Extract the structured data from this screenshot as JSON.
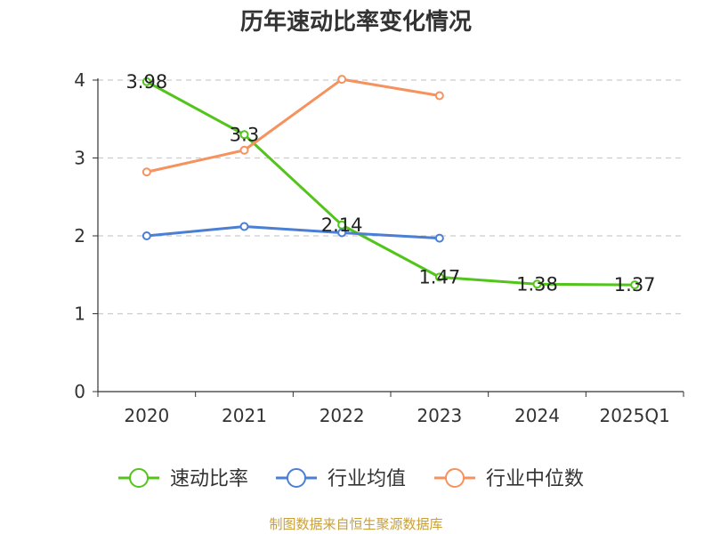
{
  "title": "历年速动比率变化情况",
  "source": "制图数据来自恒生聚源数据库",
  "chart_data": {
    "type": "line",
    "title": "历年速动比率变化情况",
    "categories": [
      "2020",
      "2021",
      "2022",
      "2023",
      "2024",
      "2025Q1"
    ],
    "ylim": [
      0,
      4
    ],
    "yticks": [
      0,
      1,
      2,
      3,
      4
    ],
    "grid": true,
    "legend_position": "bottom",
    "series": [
      {
        "name": "速动比率",
        "color": "#52c41a",
        "values": [
          3.98,
          3.3,
          2.14,
          1.47,
          1.38,
          1.37
        ],
        "labels": [
          "3.98",
          "3.3",
          "2.14",
          "1.47",
          "1.38",
          "1.37"
        ]
      },
      {
        "name": "行业均值",
        "color": "#4a7fd4",
        "values": [
          2.0,
          2.12,
          2.04,
          1.97,
          null,
          null
        ]
      },
      {
        "name": "行业中位数",
        "color": "#f5925e",
        "values": [
          2.82,
          3.1,
          4.01,
          3.8,
          null,
          null
        ]
      }
    ]
  }
}
